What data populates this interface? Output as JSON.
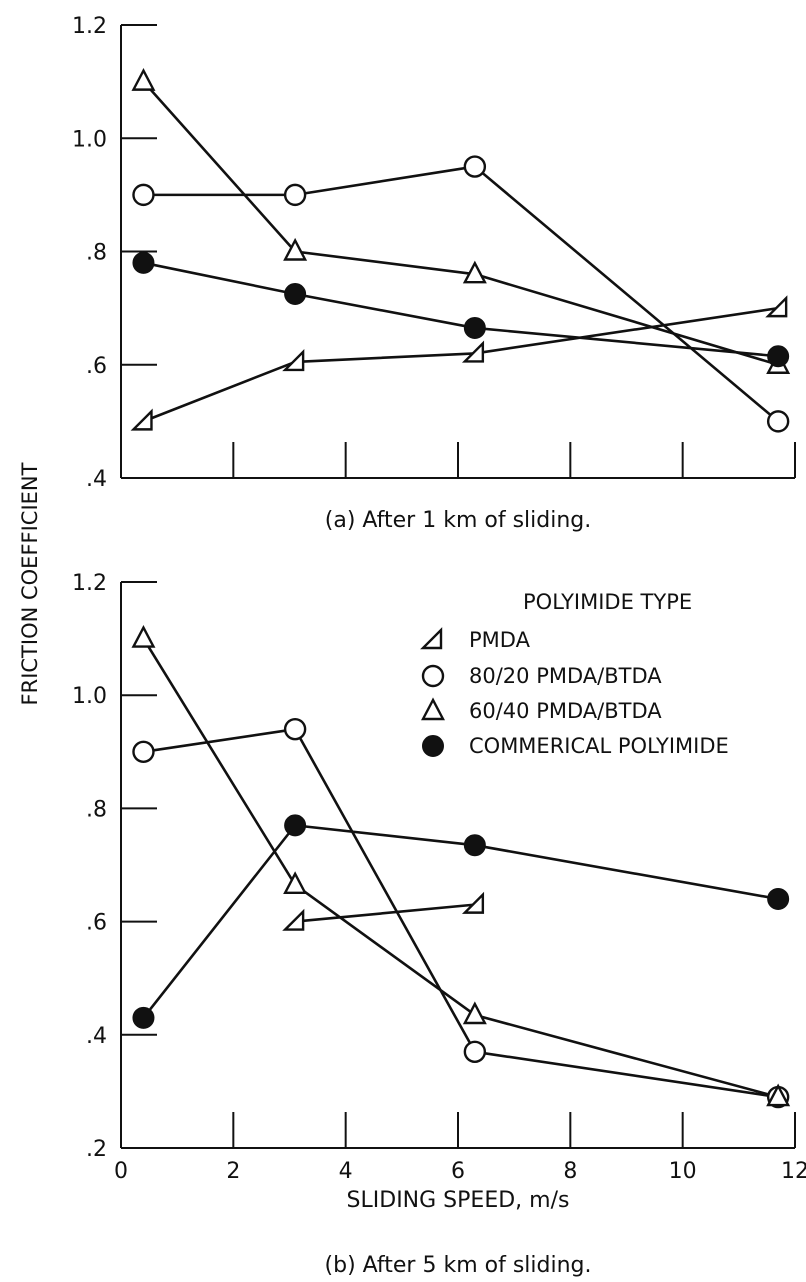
{
  "chart_data": [
    {
      "id": "a",
      "type": "line",
      "caption": "(a) After 1 km of sliding.",
      "xlabel": "",
      "ylabel": "FRICTION COEFFICIENT",
      "xlim": [
        0,
        12
      ],
      "ylim": [
        0.4,
        1.2
      ],
      "yticks": [
        0.4,
        0.6,
        0.8,
        1.0,
        1.2
      ],
      "ytick_labels": [
        ".4",
        ".6",
        ".8",
        "1.0",
        "1.2"
      ],
      "xticks": [
        0,
        2,
        4,
        6,
        8,
        10,
        12
      ],
      "xtick_labels": [],
      "grid": false,
      "series": [
        {
          "name": "PMDA",
          "marker": "half-triangle",
          "x": [
            0.4,
            3.1,
            6.3,
            11.7
          ],
          "y": [
            0.5,
            0.605,
            0.62,
            0.7
          ]
        },
        {
          "name": "80/20 PMDA/BTDA",
          "marker": "open-circle",
          "x": [
            0.4,
            3.1,
            6.3,
            11.7
          ],
          "y": [
            0.9,
            0.9,
            0.95,
            0.5
          ]
        },
        {
          "name": "60/40 PMDA/BTDA",
          "marker": "open-triangle",
          "x": [
            0.4,
            3.1,
            6.3,
            11.7
          ],
          "y": [
            1.1,
            0.8,
            0.76,
            0.6
          ]
        },
        {
          "name": "COMMERICAL POLYIMIDE",
          "marker": "filled-circle",
          "x": [
            0.4,
            3.1,
            6.3,
            11.7
          ],
          "y": [
            0.78,
            0.725,
            0.665,
            0.615
          ]
        }
      ]
    },
    {
      "id": "b",
      "type": "line",
      "caption": "(b) After 5 km of sliding.",
      "xlabel": "SLIDING SPEED, m/s",
      "ylabel": "FRICTION COEFFICIENT",
      "xlim": [
        0,
        12
      ],
      "ylim": [
        0.2,
        1.2
      ],
      "yticks": [
        0.2,
        0.4,
        0.6,
        0.8,
        1.0,
        1.2
      ],
      "ytick_labels": [
        ".2",
        ".4",
        ".6",
        ".8",
        "1.0",
        "1.2"
      ],
      "xticks": [
        0,
        2,
        4,
        6,
        8,
        10,
        12
      ],
      "xtick_labels": [
        "0",
        "2",
        "4",
        "6",
        "8",
        "10",
        "12"
      ],
      "grid": false,
      "legend": {
        "title": "POLYIMIDE TYPE",
        "placement": "top-right",
        "entries": [
          {
            "label": "PMDA",
            "marker": "half-triangle"
          },
          {
            "label": "80/20 PMDA/BTDA",
            "marker": "open-circle"
          },
          {
            "label": "60/40 PMDA/BTDA",
            "marker": "open-triangle"
          },
          {
            "label": "COMMERICAL POLYIMIDE",
            "marker": "filled-circle"
          }
        ]
      },
      "series": [
        {
          "name": "PMDA",
          "marker": "half-triangle",
          "x": [
            3.1,
            6.3
          ],
          "y": [
            0.6,
            0.63
          ]
        },
        {
          "name": "80/20 PMDA/BTDA",
          "marker": "open-circle",
          "x": [
            0.4,
            3.1,
            6.3,
            11.7
          ],
          "y": [
            0.9,
            0.94,
            0.37,
            0.29
          ]
        },
        {
          "name": "60/40 PMDA/BTDA",
          "marker": "open-triangle",
          "x": [
            0.4,
            3.1,
            6.3,
            11.7
          ],
          "y": [
            1.1,
            0.665,
            0.435,
            0.29
          ]
        },
        {
          "name": "COMMERICAL POLYIMIDE",
          "marker": "filled-circle",
          "x": [
            0.4,
            3.1,
            6.3,
            11.7
          ],
          "y": [
            0.43,
            0.77,
            0.735,
            0.64
          ]
        }
      ]
    }
  ]
}
